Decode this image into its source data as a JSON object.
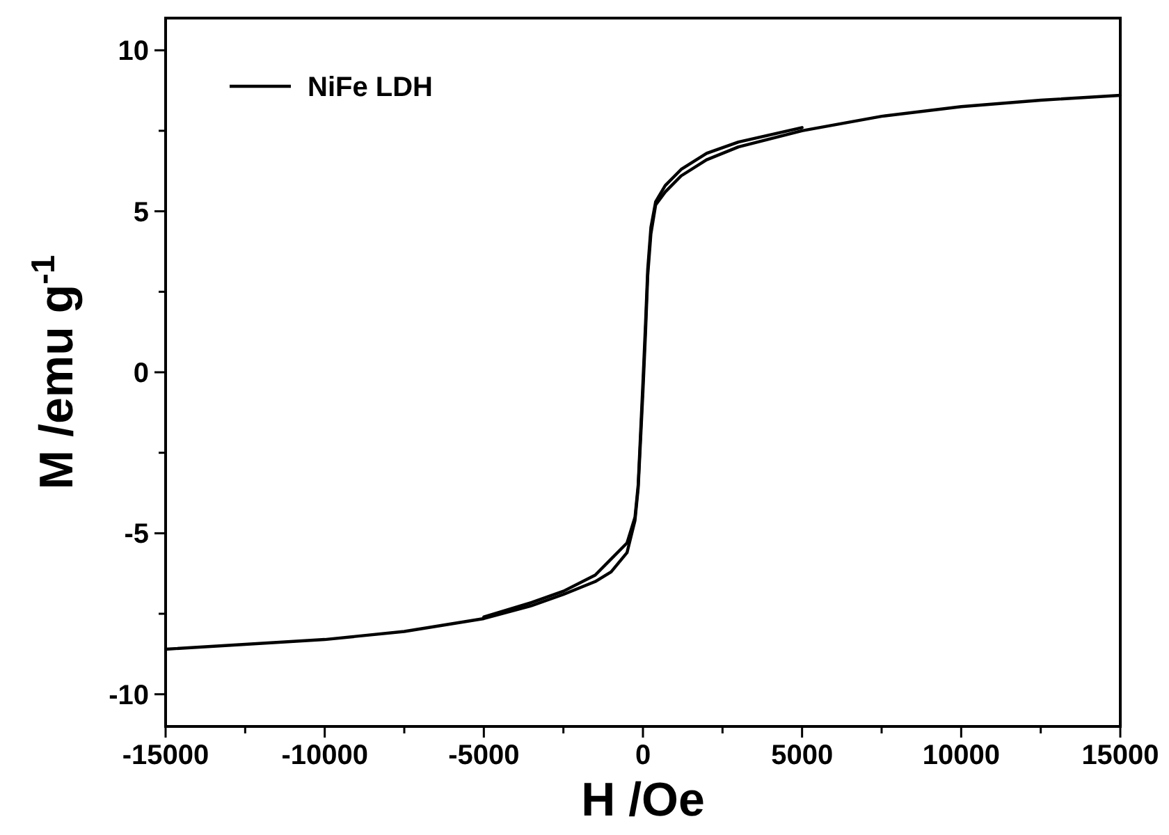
{
  "chart_data": {
    "type": "line",
    "xlabel": "H /Oe",
    "ylabel": "M /emu g$^{-1}$",
    "xlim": [
      -15000,
      15000
    ],
    "ylim": [
      -11,
      11
    ],
    "xticks": [
      -15000,
      {
        "value": -12500,
        "label": null
      },
      -10000,
      {
        "value": -7500,
        "label": null
      },
      -5000,
      {
        "value": -2500,
        "label": null
      },
      0,
      {
        "value": 2500,
        "label": null
      },
      5000,
      {
        "value": 7500,
        "label": null
      },
      10000,
      {
        "value": 12500,
        "label": null
      },
      15000
    ],
    "yticks": [
      -10,
      {
        "value": -7.5,
        "label": null
      },
      -5,
      {
        "value": -2.5,
        "label": null
      },
      0,
      {
        "value": 2.5,
        "label": null
      },
      5,
      {
        "value": 7.5,
        "label": null
      },
      10
    ],
    "legend": "top left",
    "grid": false,
    "marker": "none",
    "line_style": "solid",
    "series": [
      {
        "name": "NiFe LDH",
        "color": "#000000",
        "x": [
          -15000,
          -12500,
          -10000,
          -7500,
          -5000,
          -3500,
          -2500,
          -1500,
          -1000,
          -500,
          -250,
          -150,
          -80,
          0,
          80,
          150,
          250,
          400,
          700,
          1200,
          2000,
          3000,
          5000,
          7500,
          10000,
          12500,
          15000
        ],
        "values": [
          -8.6,
          -8.45,
          -8.3,
          -8.05,
          -7.65,
          -7.25,
          -6.9,
          -6.5,
          -6.2,
          -5.6,
          -4.6,
          -3.6,
          -2.2,
          -0.6,
          1.2,
          3.0,
          4.3,
          5.2,
          5.6,
          6.1,
          6.6,
          7.0,
          7.5,
          7.95,
          8.25,
          8.45,
          8.6
        ]
      },
      {
        "color": "#000000",
        "x": [
          -5000,
          -3500,
          -2500,
          -1500,
          -1000,
          -500,
          -250,
          -150,
          -80,
          0,
          80,
          150,
          250,
          400,
          700,
          1200,
          2000,
          3000,
          5000
        ],
        "values": [
          -7.6,
          -7.15,
          -6.8,
          -6.3,
          -5.8,
          -5.3,
          -4.5,
          -3.5,
          -2.0,
          -0.3,
          1.5,
          3.2,
          4.5,
          5.3,
          5.8,
          6.3,
          6.8,
          7.15,
          7.6
        ]
      }
    ]
  }
}
